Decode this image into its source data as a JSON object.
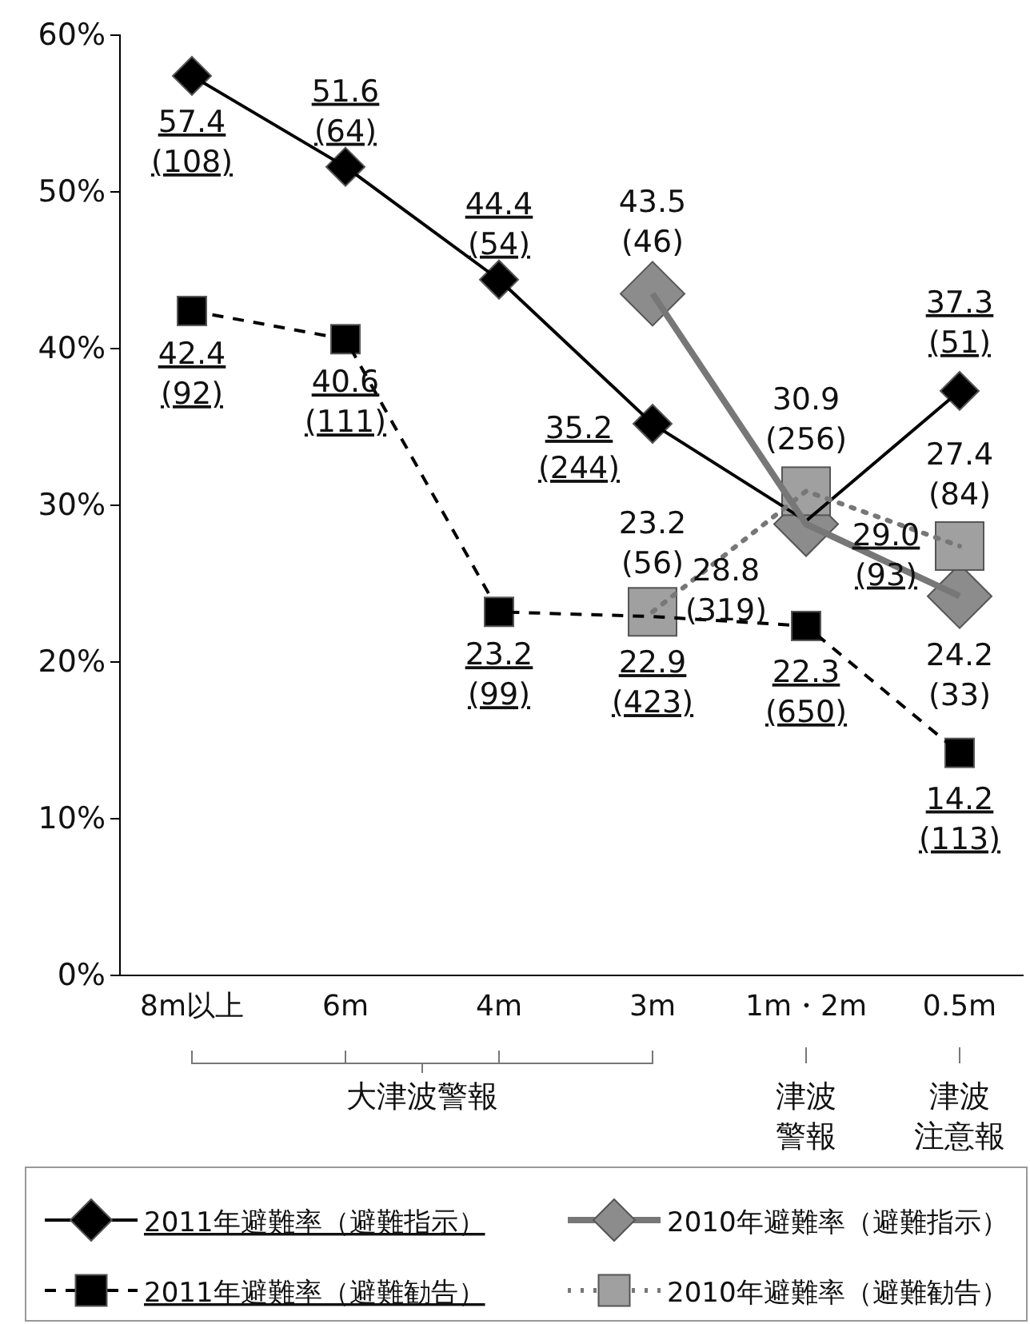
{
  "chart_data": {
    "type": "line",
    "categories": [
      "8m以上",
      "6m",
      "4m",
      "3m",
      "1m・2m",
      "0.5m"
    ],
    "ylim": [
      0,
      60
    ],
    "yticks": [
      {
        "value": 0,
        "label": "0%"
      },
      {
        "value": 10,
        "label": "10%"
      },
      {
        "value": 20,
        "label": "20%"
      },
      {
        "value": 30,
        "label": "30%"
      },
      {
        "value": 40,
        "label": "40%"
      },
      {
        "value": 50,
        "label": "50%"
      },
      {
        "value": 60,
        "label": "60%"
      }
    ],
    "series": [
      {
        "name": "2011年避難率（避難指示）",
        "color": "#000000",
        "marker": "diamond",
        "line_style": "solid",
        "values": [
          57.4,
          51.6,
          44.4,
          35.2,
          29.0,
          37.3
        ],
        "value_labels": [
          "57.4 (108)",
          "51.6 (64)",
          "44.4 (54)",
          "35.2 (244)",
          "29.0 (93)",
          "37.3 (51)"
        ]
      },
      {
        "name": "2011年避難率（避難勧告）",
        "color": "#000000",
        "marker": "square",
        "line_style": "dashed",
        "values": [
          42.4,
          40.6,
          23.2,
          22.9,
          22.3,
          14.2
        ],
        "value_labels": [
          "42.4 (92)",
          "40.6 (111)",
          "23.2 (99)",
          "22.9 (423)",
          "22.3 (650)",
          "14.2 (113)"
        ]
      },
      {
        "name": "2010年避難率（避難指示）",
        "color": "#8c8c8c",
        "marker": "diamond",
        "line_style": "solid",
        "values": [
          null,
          null,
          null,
          43.5,
          28.8,
          24.2
        ],
        "value_labels": [
          null,
          null,
          null,
          "43.5 (46)",
          "28.8 (319)",
          "24.2 (33)"
        ]
      },
      {
        "name": "2010年避難率（避難勧告）",
        "color": "#a0a0a0",
        "marker": "square",
        "line_style": "dotted",
        "values": [
          null,
          null,
          null,
          23.2,
          30.9,
          27.4
        ],
        "value_labels": [
          null,
          null,
          null,
          "23.2 (56)",
          "30.9 (256)",
          "27.4 (84)"
        ]
      }
    ],
    "annotations": [
      "大津波警報",
      "津波警報",
      "津波注意報"
    ],
    "grid": false,
    "legend": "bottom"
  }
}
